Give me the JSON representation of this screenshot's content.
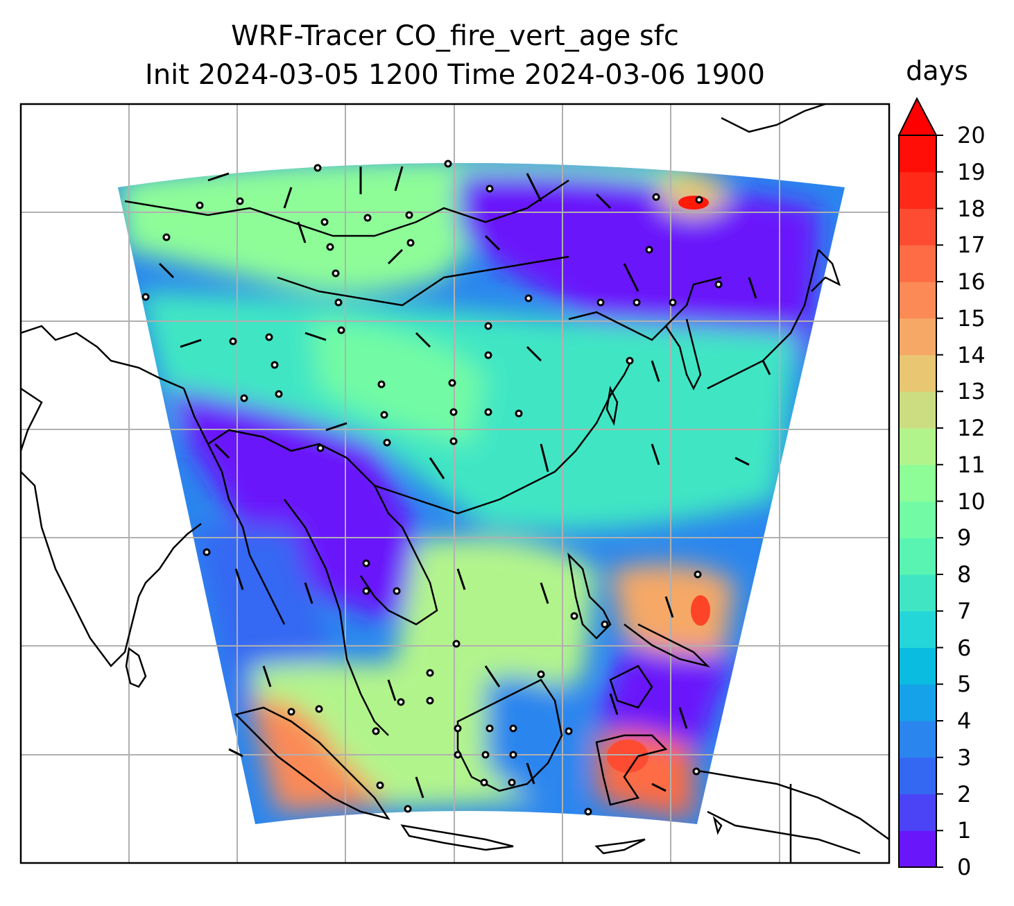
{
  "title": {
    "line1": "WRF-Tracer CO_fire_vert_age sfc",
    "line2": "Init 2024-03-05 1200 Time 2024-03-06 1900"
  },
  "colorbar": {
    "unit": "days",
    "extend": "max",
    "ticks": [
      "0",
      "1",
      "2",
      "3",
      "4",
      "5",
      "6",
      "7",
      "8",
      "9",
      "10",
      "11",
      "12",
      "13",
      "14",
      "15",
      "16",
      "17",
      "18",
      "19",
      "20"
    ],
    "colors": [
      "#6a16fb",
      "#4b44f7",
      "#3468f3",
      "#2a86ee",
      "#16a2e8",
      "#0abce0",
      "#24d6d8",
      "#40e6c4",
      "#5af4b2",
      "#72fba4",
      "#8efd98",
      "#b2f48c",
      "#ccdc80",
      "#e8c672",
      "#f6a866",
      "#fb8a56",
      "#fd6c44",
      "#fe4c33",
      "#ff2a18",
      "#ff0e08"
    ],
    "extend_color": "#ff0000"
  },
  "map": {
    "grid": true,
    "gridline_color": "#b0b0b0",
    "coastline_color": "#000000",
    "field": "CO_fire_vert_age",
    "level": "sfc",
    "overlay": "wind barbs"
  }
}
